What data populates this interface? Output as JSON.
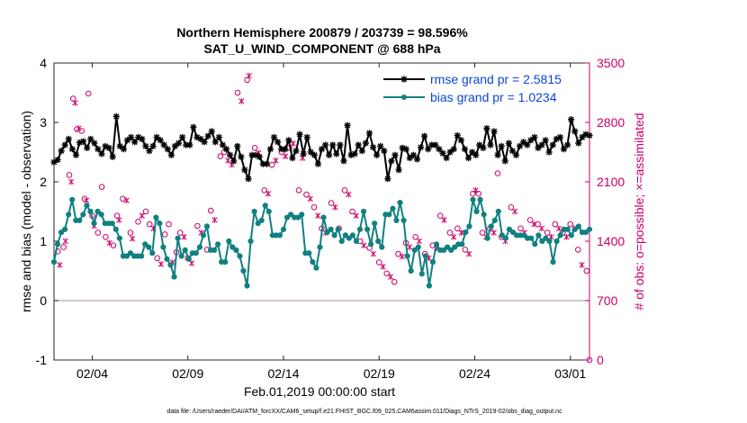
{
  "chart_data": {
    "type": "line",
    "title": "Northern Hemisphere 200879 / 203739 = 98.596%",
    "subtitle": "SAT_U_WIND_COMPONENT @ 688 hPa",
    "xlabel": "Feb.01,2019 00:00:00 start",
    "ylabel": "rmse and bias (model - observation)",
    "ylabel_right": "# of obs: o=possible; ×=assimilated",
    "footnote": "data file: /Users/raeder/DAI/ATM_forcXX/CAM6_setup/f.e21.FHIST_BGC.f09_025.CAM6assim.011/Diags_NTrS_2019-02/obs_diag_output.nc",
    "xlim": [
      1,
      29
    ],
    "x_ticks": [
      3,
      8,
      13,
      18,
      23,
      28
    ],
    "x_tick_labels": [
      "02/04",
      "02/09",
      "02/14",
      "02/19",
      "02/24",
      "03/01"
    ],
    "ylim": [
      -1,
      4
    ],
    "y_ticks": [
      -1,
      0,
      1,
      2,
      3,
      4
    ],
    "y_tick_labels": [
      "-1",
      "0",
      "1",
      "2",
      "3",
      "4"
    ],
    "ylim_right": [
      0,
      3500
    ],
    "y_ticks_right": [
      0,
      700,
      1400,
      2100,
      2800,
      3500
    ],
    "y_tick_labels_right": [
      "0",
      "700",
      "1400",
      "2100",
      "2800",
      "3500"
    ],
    "zero_line": 0,
    "legend_position": "top-right",
    "series": [
      {
        "name": "rmse grand pr = 2.5815",
        "color": "#000000",
        "marker": "star",
        "values": [
          2.33,
          2.37,
          2.52,
          2.62,
          2.72,
          2.55,
          2.45,
          2.66,
          2.68,
          2.57,
          2.72,
          2.65,
          2.55,
          2.47,
          2.6,
          2.57,
          2.42,
          3.1,
          2.6,
          2.55,
          2.7,
          2.75,
          2.67,
          2.75,
          2.72,
          2.6,
          2.52,
          2.6,
          2.75,
          2.7,
          2.62,
          2.55,
          2.45,
          2.6,
          2.65,
          2.75,
          2.62,
          2.62,
          2.92,
          2.75,
          2.72,
          2.67,
          2.77,
          2.85,
          2.67,
          2.75,
          2.62,
          2.55,
          2.45,
          2.35,
          2.6,
          2.42,
          2.2,
          2.05,
          2.45,
          2.45,
          2.42,
          2.3,
          2.3,
          2.55,
          2.75,
          2.67,
          2.55,
          2.55,
          2.7,
          2.4,
          2.52,
          2.8,
          2.47,
          2.75,
          2.5,
          2.45,
          2.3,
          2.55,
          2.62,
          2.45,
          2.62,
          2.47,
          2.62,
          2.35,
          2.95,
          2.45,
          2.47,
          2.62,
          2.52,
          2.65,
          2.82,
          2.58,
          2.45,
          2.6,
          2.52,
          2.05,
          2.35,
          2.45,
          2.2,
          2.57,
          2.55,
          2.4,
          2.45,
          2.38,
          2.58,
          2.77,
          2.55,
          2.62,
          2.62,
          2.55,
          2.48,
          2.4,
          2.5,
          2.55,
          2.78,
          2.7,
          2.55,
          2.4,
          2.5,
          2.45,
          2.62,
          2.57,
          2.9,
          2.62,
          2.85,
          2.45,
          2.6,
          2.35,
          2.65,
          2.52,
          2.45,
          2.6,
          2.67,
          2.62,
          2.7,
          2.75,
          2.57,
          2.62,
          2.7,
          2.5,
          2.62,
          2.72,
          2.75,
          2.55,
          2.62,
          3.05,
          2.85,
          2.65,
          2.75,
          2.8,
          2.78
        ]
      },
      {
        "name": "bias grand pr = 1.0234",
        "color": "#118081",
        "marker": "circle",
        "values": [
          0.65,
          0.95,
          1.15,
          1.2,
          1.45,
          1.7,
          1.35,
          1.35,
          1.45,
          1.6,
          1.5,
          1.3,
          1.5,
          1.45,
          1.3,
          1.3,
          1.3,
          1.2,
          1.05,
          0.75,
          0.75,
          0.8,
          0.75,
          0.75,
          0.75,
          0.95,
          0.9,
          0.8,
          1.4,
          1.3,
          0.9,
          0.7,
          0.6,
          0.4,
          1.05,
          0.75,
          0.85,
          0.7,
          0.8,
          0.8,
          0.9,
          1.1,
          1.25,
          0.85,
          0.85,
          0.95,
          0.65,
          0.65,
          1.0,
          0.9,
          0.85,
          0.75,
          0.5,
          0.25,
          1.0,
          1.5,
          1.3,
          1.35,
          1.6,
          1.5,
          1.1,
          1.1,
          1.1,
          1.2,
          1.4,
          1.45,
          1.4,
          1.4,
          1.45,
          0.8,
          0.8,
          0.65,
          0.55,
          0.9,
          1.4,
          1.15,
          1.2,
          1.1,
          1.2,
          1.0,
          1.1,
          1.05,
          1.1,
          1.0,
          1.2,
          1.5,
          1.2,
          0.95,
          1.3,
          1.0,
          0.9,
          1.45,
          1.45,
          1.55,
          1.35,
          1.65,
          1.35,
          0.75,
          0.5,
          0.85,
          0.9,
          0.45,
          0.75,
          0.25,
          0.65,
          0.95,
          0.85,
          0.85,
          0.9,
          0.85,
          0.9,
          0.95,
          0.95,
          1.15,
          1.25,
          1.7,
          1.5,
          1.7,
          1.45,
          1.05,
          1.25,
          1.35,
          1.5,
          1.1,
          1.05,
          1.2,
          1.15,
          1.1,
          1.1,
          1.1,
          1.05,
          1.05,
          0.95,
          1.1,
          1.0,
          1.05,
          1.0,
          0.65,
          1.0,
          1.1,
          1.2,
          1.2,
          1.1,
          1.2,
          1.25,
          1.15,
          1.15,
          1.2
        ]
      }
    ],
    "obs_points": [
      {
        "x": 1.2,
        "y": 1280,
        "m": "o"
      },
      {
        "x": 1.3,
        "y": 1120,
        "m": "x"
      },
      {
        "x": 1.5,
        "y": 1330,
        "m": "o"
      },
      {
        "x": 1.6,
        "y": 1400,
        "m": "x"
      },
      {
        "x": 1.8,
        "y": 2180,
        "m": "o"
      },
      {
        "x": 1.9,
        "y": 2100,
        "m": "x"
      },
      {
        "x": 2.0,
        "y": 3080,
        "m": "o"
      },
      {
        "x": 2.1,
        "y": 3030,
        "m": "x"
      },
      {
        "x": 2.2,
        "y": 2720,
        "m": "o"
      },
      {
        "x": 2.3,
        "y": 2730,
        "m": "x"
      },
      {
        "x": 2.45,
        "y": 2700,
        "m": "o"
      },
      {
        "x": 2.6,
        "y": 1900,
        "m": "o"
      },
      {
        "x": 2.7,
        "y": 1880,
        "m": "x"
      },
      {
        "x": 2.8,
        "y": 3140,
        "m": "o"
      },
      {
        "x": 3.0,
        "y": 1700,
        "m": "o"
      },
      {
        "x": 3.1,
        "y": 1580,
        "m": "x"
      },
      {
        "x": 3.3,
        "y": 1500,
        "m": "o"
      },
      {
        "x": 3.5,
        "y": 2040,
        "m": "o"
      },
      {
        "x": 3.7,
        "y": 1450,
        "m": "o"
      },
      {
        "x": 3.9,
        "y": 1380,
        "m": "x"
      },
      {
        "x": 4.1,
        "y": 1350,
        "m": "o"
      },
      {
        "x": 4.3,
        "y": 1700,
        "m": "o"
      },
      {
        "x": 4.4,
        "y": 1650,
        "m": "x"
      },
      {
        "x": 4.6,
        "y": 1900,
        "m": "o"
      },
      {
        "x": 4.8,
        "y": 1880,
        "m": "x"
      },
      {
        "x": 5.0,
        "y": 1500,
        "m": "o"
      },
      {
        "x": 5.1,
        "y": 1430,
        "m": "x"
      },
      {
        "x": 5.4,
        "y": 1630,
        "m": "o"
      },
      {
        "x": 5.6,
        "y": 1700,
        "m": "x"
      },
      {
        "x": 5.8,
        "y": 1750,
        "m": "o"
      },
      {
        "x": 6.0,
        "y": 1600,
        "m": "o"
      },
      {
        "x": 6.2,
        "y": 1550,
        "m": "x"
      },
      {
        "x": 6.4,
        "y": 1200,
        "m": "o"
      },
      {
        "x": 6.6,
        "y": 1130,
        "m": "x"
      },
      {
        "x": 6.8,
        "y": 1480,
        "m": "o"
      },
      {
        "x": 7.0,
        "y": 1600,
        "m": "o"
      },
      {
        "x": 7.2,
        "y": 1150,
        "m": "x"
      },
      {
        "x": 7.4,
        "y": 1270,
        "m": "o"
      },
      {
        "x": 7.6,
        "y": 1500,
        "m": "o"
      },
      {
        "x": 7.8,
        "y": 1450,
        "m": "x"
      },
      {
        "x": 8.0,
        "y": 1200,
        "m": "o"
      },
      {
        "x": 8.2,
        "y": 1140,
        "m": "x"
      },
      {
        "x": 8.5,
        "y": 1580,
        "m": "o"
      },
      {
        "x": 8.7,
        "y": 1500,
        "m": "x"
      },
      {
        "x": 9.0,
        "y": 1300,
        "m": "o"
      },
      {
        "x": 9.2,
        "y": 1760,
        "m": "o"
      },
      {
        "x": 9.4,
        "y": 1650,
        "m": "x"
      },
      {
        "x": 9.7,
        "y": 2400,
        "m": "o"
      },
      {
        "x": 9.9,
        "y": 2450,
        "m": "o"
      },
      {
        "x": 10.1,
        "y": 2350,
        "m": "x"
      },
      {
        "x": 10.3,
        "y": 2300,
        "m": "x"
      },
      {
        "x": 10.6,
        "y": 3150,
        "m": "o"
      },
      {
        "x": 10.8,
        "y": 3050,
        "m": "x"
      },
      {
        "x": 11.1,
        "y": 3300,
        "m": "o"
      },
      {
        "x": 11.2,
        "y": 3350,
        "m": "x"
      },
      {
        "x": 11.5,
        "y": 2500,
        "m": "o"
      },
      {
        "x": 11.7,
        "y": 2440,
        "m": "x"
      },
      {
        "x": 12.0,
        "y": 2000,
        "m": "o"
      },
      {
        "x": 12.2,
        "y": 1960,
        "m": "x"
      },
      {
        "x": 12.4,
        "y": 2300,
        "m": "o"
      },
      {
        "x": 12.6,
        "y": 2350,
        "m": "x"
      },
      {
        "x": 12.9,
        "y": 2450,
        "m": "o"
      },
      {
        "x": 13.1,
        "y": 2400,
        "m": "x"
      },
      {
        "x": 13.3,
        "y": 2500,
        "m": "o"
      },
      {
        "x": 13.5,
        "y": 2550,
        "m": "x"
      },
      {
        "x": 13.8,
        "y": 2000,
        "m": "o"
      },
      {
        "x": 14.0,
        "y": 2380,
        "m": "x"
      },
      {
        "x": 14.2,
        "y": 1950,
        "m": "o"
      },
      {
        "x": 14.4,
        "y": 1900,
        "m": "x"
      },
      {
        "x": 14.6,
        "y": 1800,
        "m": "o"
      },
      {
        "x": 14.8,
        "y": 1700,
        "m": "x"
      },
      {
        "x": 15.0,
        "y": 1550,
        "m": "o"
      },
      {
        "x": 15.2,
        "y": 1500,
        "m": "x"
      },
      {
        "x": 15.5,
        "y": 1850,
        "m": "o"
      },
      {
        "x": 15.7,
        "y": 1800,
        "m": "x"
      },
      {
        "x": 15.9,
        "y": 1550,
        "m": "o"
      },
      {
        "x": 16.2,
        "y": 2000,
        "m": "o"
      },
      {
        "x": 16.4,
        "y": 1950,
        "m": "x"
      },
      {
        "x": 16.6,
        "y": 1750,
        "m": "o"
      },
      {
        "x": 16.8,
        "y": 1700,
        "m": "x"
      },
      {
        "x": 17.0,
        "y": 1400,
        "m": "o"
      },
      {
        "x": 17.2,
        "y": 1350,
        "m": "x"
      },
      {
        "x": 17.5,
        "y": 1320,
        "m": "o"
      },
      {
        "x": 17.7,
        "y": 1250,
        "m": "x"
      },
      {
        "x": 18.0,
        "y": 1150,
        "m": "o"
      },
      {
        "x": 18.2,
        "y": 1100,
        "m": "x"
      },
      {
        "x": 18.4,
        "y": 1020,
        "m": "o"
      },
      {
        "x": 18.6,
        "y": 980,
        "m": "x"
      },
      {
        "x": 18.8,
        "y": 920,
        "m": "o"
      },
      {
        "x": 19.0,
        "y": 1250,
        "m": "o"
      },
      {
        "x": 19.2,
        "y": 1220,
        "m": "x"
      },
      {
        "x": 19.4,
        "y": 1380,
        "m": "o"
      },
      {
        "x": 19.6,
        "y": 1330,
        "m": "x"
      },
      {
        "x": 19.9,
        "y": 1450,
        "m": "o"
      },
      {
        "x": 20.1,
        "y": 1400,
        "m": "x"
      },
      {
        "x": 20.4,
        "y": 1250,
        "m": "o"
      },
      {
        "x": 20.6,
        "y": 1200,
        "m": "x"
      },
      {
        "x": 20.8,
        "y": 1350,
        "m": "o"
      },
      {
        "x": 21.0,
        "y": 1320,
        "m": "x"
      },
      {
        "x": 21.2,
        "y": 1700,
        "m": "o"
      },
      {
        "x": 21.4,
        "y": 1650,
        "m": "x"
      },
      {
        "x": 21.7,
        "y": 1500,
        "m": "o"
      },
      {
        "x": 21.9,
        "y": 1450,
        "m": "x"
      },
      {
        "x": 22.1,
        "y": 1550,
        "m": "o"
      },
      {
        "x": 22.3,
        "y": 1500,
        "m": "x"
      },
      {
        "x": 22.5,
        "y": 1300,
        "m": "o"
      },
      {
        "x": 22.7,
        "y": 1250,
        "m": "x"
      },
      {
        "x": 22.9,
        "y": 1960,
        "m": "o"
      },
      {
        "x": 23.05,
        "y": 2000,
        "m": "x"
      },
      {
        "x": 23.2,
        "y": 1960,
        "m": "o"
      },
      {
        "x": 23.4,
        "y": 1500,
        "m": "o"
      },
      {
        "x": 23.6,
        "y": 1450,
        "m": "x"
      },
      {
        "x": 23.8,
        "y": 1550,
        "m": "o"
      },
      {
        "x": 24.0,
        "y": 1500,
        "m": "x"
      },
      {
        "x": 24.2,
        "y": 2200,
        "m": "o"
      },
      {
        "x": 24.4,
        "y": 1450,
        "m": "o"
      },
      {
        "x": 24.6,
        "y": 1400,
        "m": "x"
      },
      {
        "x": 24.9,
        "y": 1800,
        "m": "o"
      },
      {
        "x": 25.1,
        "y": 1750,
        "m": "x"
      },
      {
        "x": 25.4,
        "y": 1550,
        "m": "o"
      },
      {
        "x": 25.6,
        "y": 1500,
        "m": "x"
      },
      {
        "x": 25.9,
        "y": 1650,
        "m": "o"
      },
      {
        "x": 26.1,
        "y": 1600,
        "m": "x"
      },
      {
        "x": 26.3,
        "y": 1600,
        "m": "o"
      },
      {
        "x": 26.5,
        "y": 1550,
        "m": "x"
      },
      {
        "x": 26.8,
        "y": 1500,
        "m": "o"
      },
      {
        "x": 27.0,
        "y": 1450,
        "m": "x"
      },
      {
        "x": 27.2,
        "y": 1600,
        "m": "o"
      },
      {
        "x": 27.4,
        "y": 1550,
        "m": "x"
      },
      {
        "x": 27.6,
        "y": 1500,
        "m": "o"
      },
      {
        "x": 27.8,
        "y": 1450,
        "m": "x"
      },
      {
        "x": 28.0,
        "y": 1600,
        "m": "o"
      },
      {
        "x": 28.2,
        "y": 1550,
        "m": "x"
      },
      {
        "x": 28.4,
        "y": 1300,
        "m": "o"
      },
      {
        "x": 28.6,
        "y": 1120,
        "m": "x"
      },
      {
        "x": 28.85,
        "y": 1050,
        "m": "o"
      },
      {
        "x": 29.0,
        "y": 0,
        "m": "o"
      }
    ]
  }
}
